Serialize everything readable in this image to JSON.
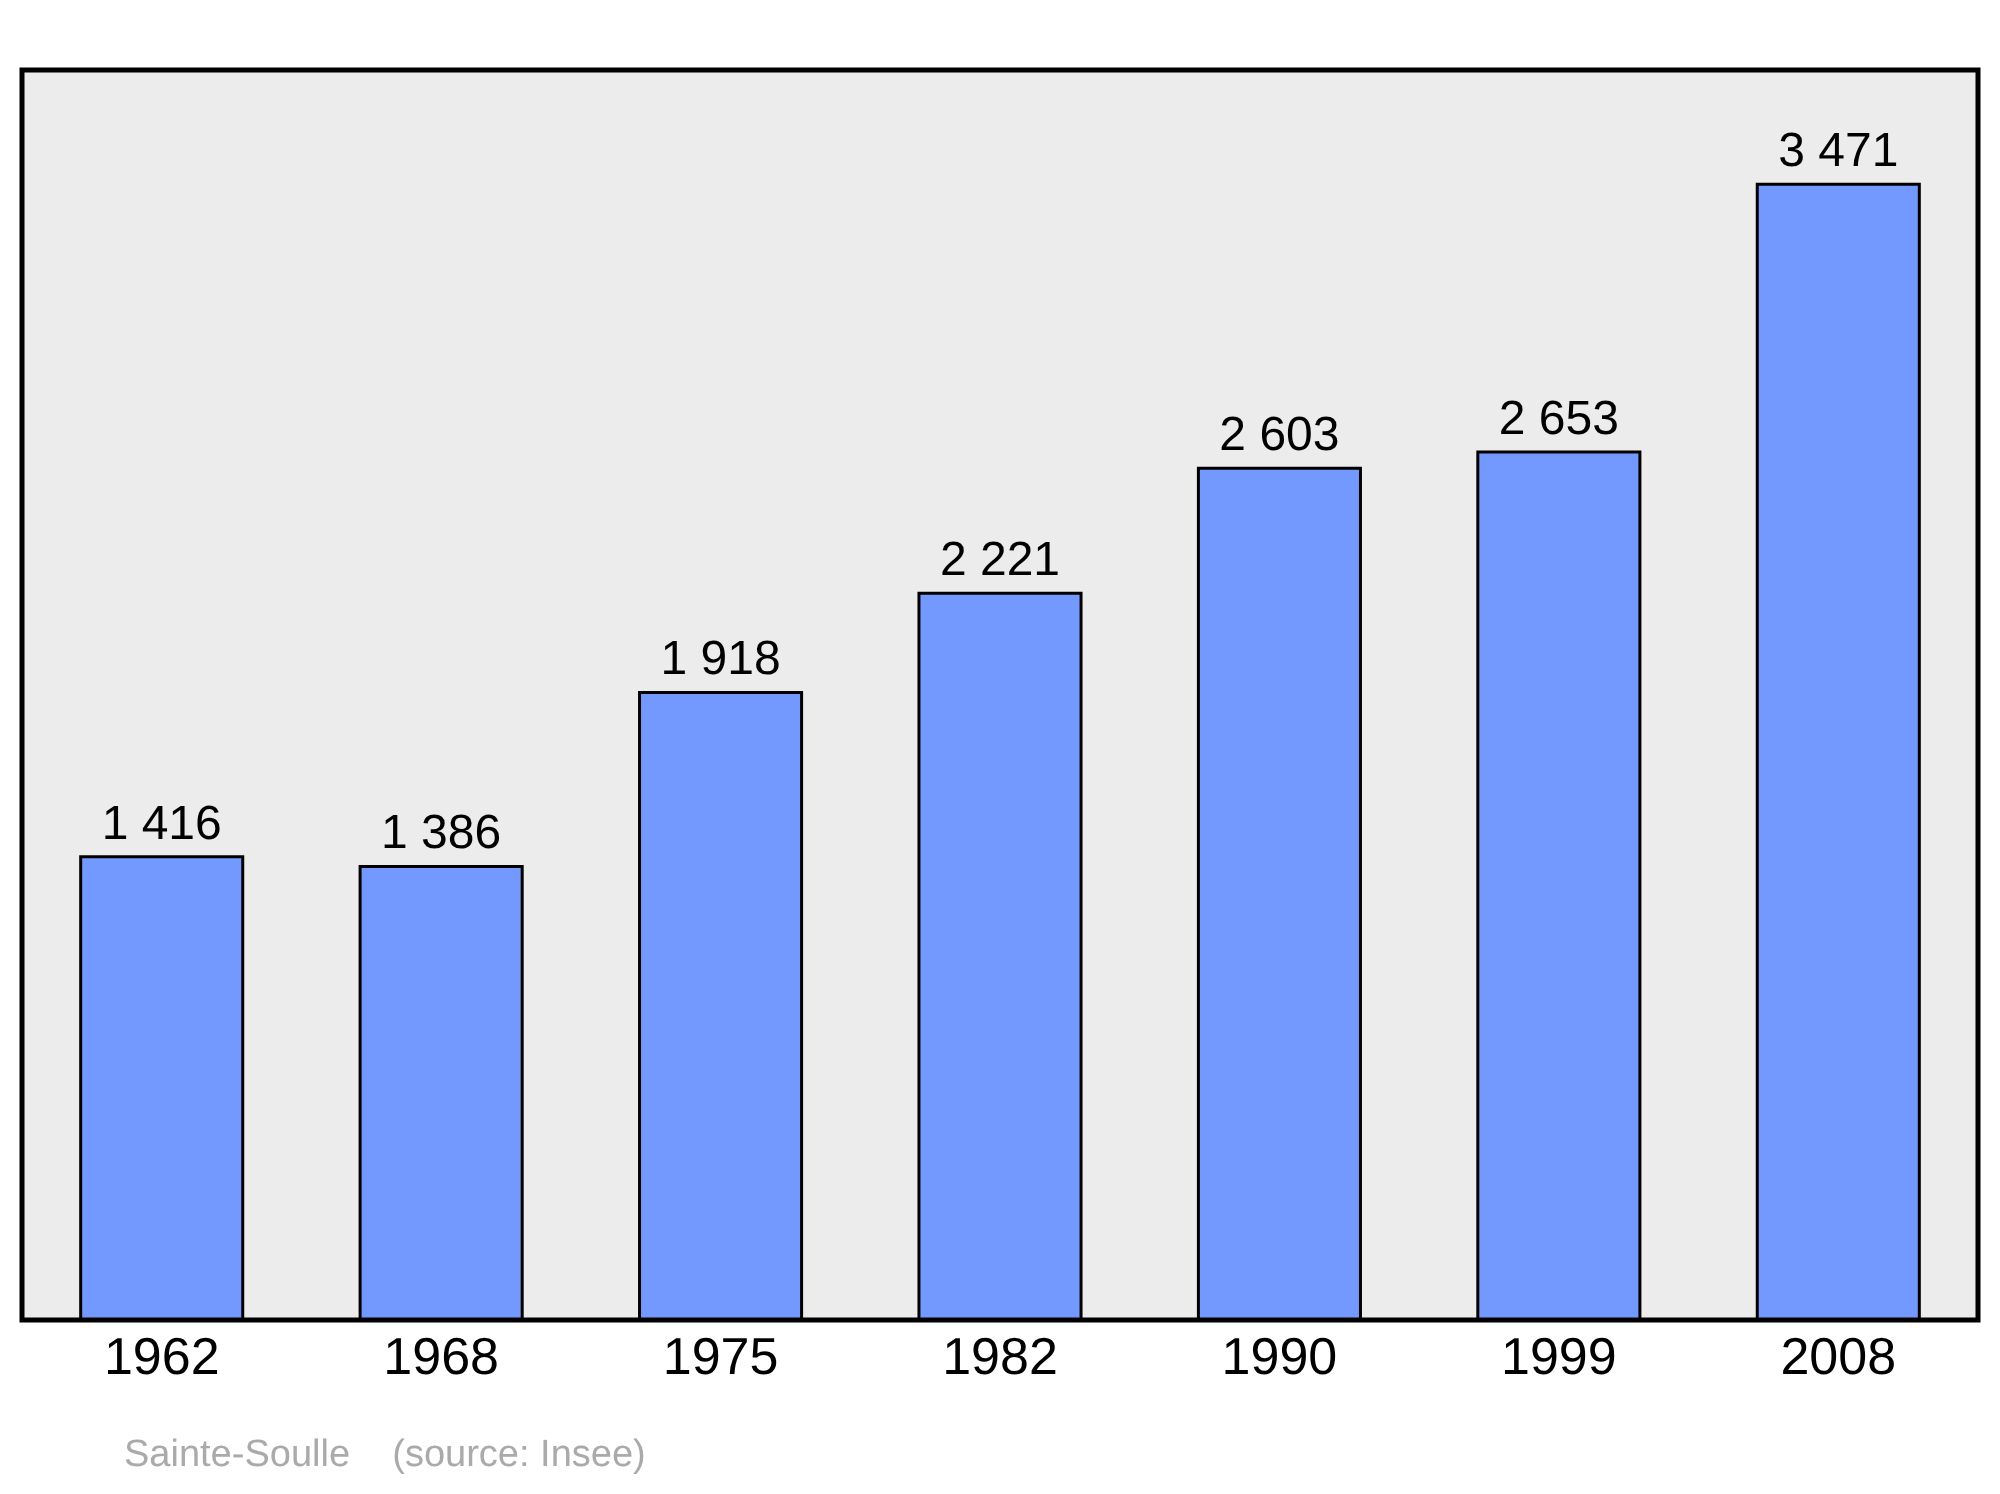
{
  "chart_data": {
    "type": "bar",
    "categories": [
      "1962",
      "1968",
      "1975",
      "1982",
      "1990",
      "1999",
      "2008"
    ],
    "values": [
      1416,
      1386,
      1918,
      2221,
      2603,
      2653,
      3471
    ],
    "value_labels": [
      "1 416",
      "1 386",
      "1 918",
      "2 221",
      "2 603",
      "2 653",
      "3 471"
    ],
    "color": "#7399ff",
    "ylim": [
      0,
      3820
    ],
    "tick_labels": "x",
    "grid": false,
    "legend": false,
    "annotations": [
      "Sainte-Soulle    (source: Insee)"
    ]
  }
}
